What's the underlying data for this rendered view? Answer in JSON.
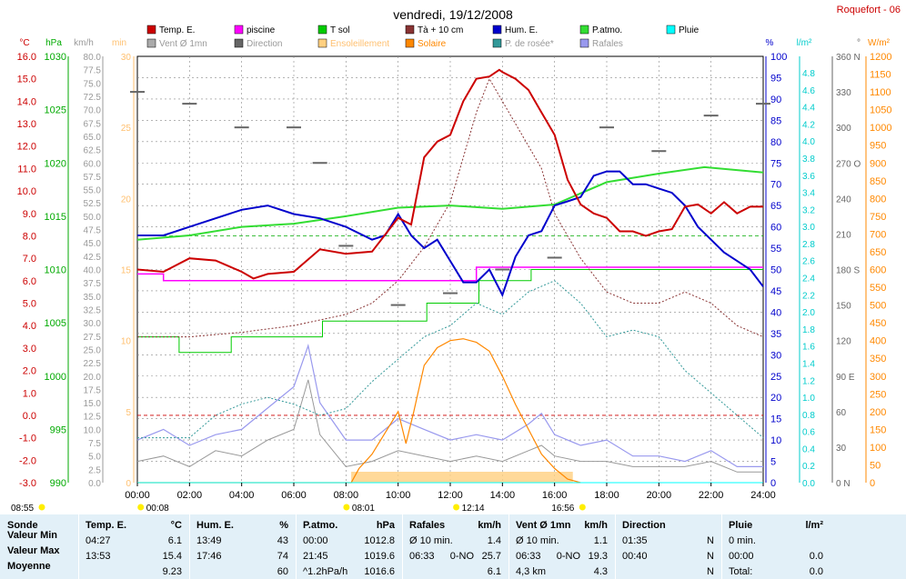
{
  "title": "vendredi, 19/12/2008",
  "station": "Roquefort - 06",
  "legend": [
    {
      "label": "Temp. E.",
      "color": "#cc0000"
    },
    {
      "label": "piscine",
      "color": "#ff00ff"
    },
    {
      "label": "T sol",
      "color": "#00cc00"
    },
    {
      "label": "Tà + 10 cm",
      "color": "#883333"
    },
    {
      "label": "Hum. E.",
      "color": "#0000cc"
    },
    {
      "label": "P.atmo.",
      "color": "#33dd33"
    },
    {
      "label": "Pluie",
      "color": "#00ffff"
    },
    {
      "label": "Vent Ø 1mn",
      "color": "#aaaaaa"
    },
    {
      "label": "Direction",
      "color": "#666666"
    },
    {
      "label": "Ensoleillement",
      "color": "#ffd080"
    },
    {
      "label": "Solaire",
      "color": "#ff8800"
    },
    {
      "label": "P. de rosée*",
      "color": "#339999"
    },
    {
      "label": "Rafales",
      "color": "#9999ee"
    }
  ],
  "axes_units": {
    "temp": "°C",
    "pressure": "hPa",
    "wind": "km/h",
    "min": "min",
    "hum": "%",
    "rain": "l/m²",
    "dir": "°",
    "solar": "W/m²"
  },
  "axis_ticks": {
    "temp": [
      "16.0",
      "15.0",
      "14.0",
      "13.0",
      "12.0",
      "11.0",
      "10.0",
      "9.0",
      "8.0",
      "7.0",
      "6.0",
      "5.0",
      "4.0",
      "3.0",
      "2.0",
      "1.0",
      "0.0",
      "-1.0",
      "-2.0",
      "-3.0"
    ],
    "pressure": [
      "1030",
      "1025",
      "1020",
      "1015",
      "1010",
      "1005",
      "1000",
      "995",
      "990"
    ],
    "wind": [
      "80.0",
      "77.5",
      "75.0",
      "72.5",
      "70.0",
      "67.5",
      "65.0",
      "62.5",
      "60.0",
      "57.5",
      "55.0",
      "52.5",
      "50.0",
      "47.5",
      "45.0",
      "42.5",
      "40.0",
      "37.5",
      "35.0",
      "32.5",
      "30.0",
      "27.5",
      "25.0",
      "22.5",
      "20.0",
      "17.5",
      "15.0",
      "12.5",
      "10.0",
      "7.5",
      "5.0",
      "2.5",
      "0.0"
    ],
    "minutes": [
      "30",
      "25",
      "20",
      "15",
      "10",
      "5",
      "0"
    ],
    "hum": [
      "100",
      "95",
      "90",
      "85",
      "80",
      "75",
      "70",
      "65",
      "60",
      "55",
      "50",
      "45",
      "40",
      "35",
      "30",
      "25",
      "20",
      "15",
      "10",
      "5",
      "0"
    ],
    "rain": [
      "4.8",
      "4.6",
      "4.4",
      "4.2",
      "4.0",
      "3.8",
      "3.6",
      "3.4",
      "3.2",
      "3.0",
      "2.8",
      "2.6",
      "2.4",
      "2.2",
      "2.0",
      "1.8",
      "1.6",
      "1.4",
      "1.2",
      "1.0",
      "0.8",
      "0.6",
      "0.4",
      "0.2",
      "0.0"
    ],
    "dir": [
      "360 N",
      "330",
      "300",
      "270 O",
      "240",
      "210",
      "180 S",
      "150",
      "120",
      "90 E",
      "60",
      "30",
      "0 N"
    ],
    "solar": [
      "1200",
      "1150",
      "1100",
      "1050",
      "1000",
      "950",
      "900",
      "850",
      "800",
      "750",
      "700",
      "650",
      "600",
      "550",
      "500",
      "450",
      "400",
      "350",
      "300",
      "250",
      "200",
      "150",
      "100",
      "50",
      "0"
    ]
  },
  "time_ticks": [
    "00:00",
    "02:00",
    "04:00",
    "06:00",
    "08:00",
    "10:00",
    "12:00",
    "14:00",
    "16:00",
    "18:00",
    "20:00",
    "22:00",
    "24:00"
  ],
  "markers": {
    "sunrise": "08:55",
    "t1": "00:08",
    "t2": "08:01",
    "t3": "12:14",
    "t4": "16:56"
  },
  "summary": {
    "sonde": {
      "h": "Sonde",
      "rows": [
        "Valeur Min",
        "Valeur Max",
        "Moyenne"
      ]
    },
    "temp": {
      "h": "Temp. E.",
      "u": "°C",
      "rows": [
        [
          "04:27",
          "6.1"
        ],
        [
          "13:53",
          "15.4"
        ],
        [
          "",
          "9.23"
        ]
      ]
    },
    "hum": {
      "h": "Hum. E.",
      "u": "%",
      "rows": [
        [
          "13:49",
          "43"
        ],
        [
          "17:46",
          "74"
        ],
        [
          "",
          "60"
        ]
      ]
    },
    "patmo": {
      "h": "P.atmo.",
      "u": "hPa",
      "rows": [
        [
          "00:00",
          "1012.8"
        ],
        [
          "21:45",
          "1019.6"
        ],
        [
          "^1.2hPa/h",
          "1016.6"
        ]
      ]
    },
    "rafales": {
      "h": "Rafales",
      "u": "km/h",
      "rows": [
        [
          "Ø 10 min.",
          "",
          "1.4"
        ],
        [
          "06:33",
          "0-NO",
          "25.7"
        ],
        [
          "",
          "",
          "6.1"
        ]
      ]
    },
    "vent": {
      "h": "Vent Ø 1mn",
      "u": "km/h",
      "rows": [
        [
          "Ø 10 min.",
          "",
          "1.1"
        ],
        [
          "06:33",
          "0-NO",
          "19.3"
        ],
        [
          "4,3 km",
          "",
          "4.3"
        ]
      ]
    },
    "direction": {
      "h": "Direction",
      "rows": [
        [
          "01:35",
          "N"
        ],
        [
          "00:40",
          "N"
        ],
        [
          "",
          "N"
        ]
      ]
    },
    "pluie": {
      "h": "Pluie",
      "u": "l/m²",
      "rows": [
        [
          "0 min.",
          ""
        ],
        [
          "00:00",
          "0.0"
        ],
        [
          "Total:",
          "0.0"
        ]
      ]
    }
  },
  "chart_data": {
    "type": "line",
    "x_unit": "hours",
    "x_range": [
      0,
      24
    ],
    "series": [
      {
        "name": "Temp. E.",
        "unit": "°C",
        "x": [
          0,
          1,
          2,
          3,
          4,
          4.45,
          5,
          6,
          7,
          8,
          9,
          10,
          10.5,
          11,
          11.5,
          12,
          12.5,
          13,
          13.5,
          13.88,
          14,
          14.5,
          15,
          15.5,
          16,
          16.5,
          17,
          17.5,
          18,
          18.5,
          19,
          19.5,
          20,
          20.5,
          21,
          21.5,
          22,
          22.5,
          23,
          23.5,
          24
        ],
        "y": [
          6.5,
          6.4,
          7.0,
          6.9,
          6.4,
          6.1,
          6.3,
          6.4,
          7.4,
          7.2,
          7.3,
          8.8,
          8.5,
          11.5,
          12.2,
          12.5,
          14.0,
          15.0,
          15.1,
          15.4,
          15.3,
          15.0,
          14.5,
          13.5,
          12.5,
          10.5,
          9.4,
          9.0,
          8.8,
          8.2,
          8.2,
          8.0,
          8.2,
          8.3,
          9.3,
          9.4,
          9.0,
          9.5,
          9.0,
          9.3,
          9.3
        ]
      },
      {
        "name": "piscine",
        "unit": "°C",
        "x": [
          0,
          1,
          2,
          4,
          6,
          8,
          10,
          11,
          12,
          13,
          14,
          16,
          18,
          20,
          22,
          23,
          24
        ],
        "y": [
          6.3,
          6.0,
          6.0,
          6.0,
          6.0,
          6.0,
          6.0,
          6.0,
          6.0,
          6.6,
          6.6,
          6.6,
          6.6,
          6.6,
          6.6,
          6.6,
          6.6
        ]
      },
      {
        "name": "T sol",
        "unit": "°C",
        "x": [
          0,
          1.5,
          1.6,
          3.5,
          3.6,
          4.8,
          7,
          7.1,
          11,
          11.1,
          13,
          13.1,
          15,
          15.1,
          24
        ],
        "y": [
          3.5,
          3.5,
          2.8,
          2.8,
          3.5,
          3.5,
          3.5,
          4.2,
          4.2,
          5.0,
          5.0,
          6.0,
          6.0,
          6.5,
          6.5
        ]
      },
      {
        "name": "Tà + 10 cm",
        "unit": "°C",
        "x": [
          0,
          2,
          4,
          6,
          8,
          9,
          10,
          11,
          12,
          13,
          13.5,
          14,
          15,
          15.5,
          16,
          17,
          18,
          19,
          20,
          21,
          22,
          23,
          24
        ],
        "y": [
          3.5,
          3.5,
          3.7,
          4.0,
          4.5,
          5.0,
          6.0,
          7.5,
          9.5,
          13.5,
          15.0,
          14.0,
          12.0,
          11.0,
          9.0,
          7.0,
          5.5,
          5.0,
          5.0,
          5.5,
          5.0,
          4.0,
          3.5
        ]
      },
      {
        "name": "Hum. E.",
        "unit": "%",
        "x": [
          0,
          1,
          2,
          3,
          4,
          5,
          6,
          7,
          8,
          9,
          9.5,
          10,
          10.5,
          11,
          11.5,
          12,
          12.5,
          13,
          13.5,
          14,
          14.5,
          15,
          15.5,
          16,
          16.5,
          17,
          17.5,
          18,
          18.5,
          19,
          19.5,
          20,
          20.5,
          21,
          21.5,
          22,
          22.5,
          23,
          23.5,
          24
        ],
        "y": [
          58,
          58,
          60,
          62,
          64,
          65,
          63,
          62,
          60,
          57,
          58,
          63,
          58,
          55,
          57,
          52,
          47,
          47,
          50,
          44,
          53,
          58,
          59,
          65,
          66,
          67,
          72,
          73,
          73,
          70,
          70,
          69,
          68,
          65,
          60,
          57,
          54,
          52,
          50,
          46
        ]
      },
      {
        "name": "P.atmo.",
        "unit": "hPa",
        "x": [
          0,
          2,
          4,
          6,
          8,
          10,
          12,
          14,
          16,
          18,
          20,
          21.75,
          24
        ],
        "y": [
          1012.8,
          1013.2,
          1014.0,
          1014.3,
          1015.0,
          1015.8,
          1016.0,
          1015.7,
          1016.1,
          1018.2,
          1019.0,
          1019.6,
          1019.1
        ]
      },
      {
        "name": "Vent Ø 1mn",
        "unit": "km/h",
        "x": [
          0,
          1,
          2,
          3,
          4,
          5,
          6,
          6.55,
          7,
          8,
          9,
          10,
          11,
          12,
          13,
          14,
          15,
          15.5,
          16,
          17,
          18,
          19,
          20,
          21,
          22,
          23,
          24
        ],
        "y": [
          4,
          5,
          3,
          6,
          5,
          8,
          10,
          19.3,
          9,
          3,
          4,
          6,
          5,
          4,
          5,
          4,
          6,
          7,
          5,
          4,
          4,
          3,
          3,
          3,
          4,
          2,
          2
        ]
      },
      {
        "name": "Direction",
        "unit": "°",
        "x": [
          0,
          2,
          4,
          6,
          7,
          8,
          10,
          12,
          14,
          16,
          18,
          20,
          22,
          24
        ],
        "y": [
          330,
          320,
          300,
          300,
          270,
          200,
          150,
          160,
          180,
          190,
          300,
          280,
          310,
          320
        ]
      },
      {
        "name": "Solaire",
        "unit": "W/m²",
        "x": [
          0,
          8.2,
          8.5,
          9,
          9.5,
          10,
          10.3,
          10.6,
          11,
          11.5,
          12,
          12.5,
          13,
          13.5,
          14,
          14.5,
          15,
          15.5,
          16,
          16.5,
          17
        ],
        "y": [
          0,
          0,
          40,
          80,
          140,
          200,
          110,
          200,
          330,
          380,
          400,
          405,
          395,
          370,
          300,
          220,
          150,
          80,
          40,
          10,
          0
        ]
      },
      {
        "name": "P. de rosée*",
        "unit": "°C",
        "x": [
          0,
          2,
          3,
          4,
          5,
          6,
          7,
          8,
          9,
          10,
          11,
          12,
          13,
          14,
          15,
          16,
          17,
          18,
          19,
          20,
          21,
          22,
          23,
          24
        ],
        "y": [
          -1.0,
          -1.0,
          0.0,
          0.5,
          0.8,
          0.5,
          0.0,
          0.3,
          1.5,
          2.5,
          3.5,
          4.0,
          5.0,
          4.5,
          5.5,
          6.0,
          5.0,
          3.5,
          3.8,
          3.5,
          2.0,
          1.0,
          0.0,
          -1.0
        ]
      },
      {
        "name": "Rafales",
        "unit": "km/h",
        "x": [
          0,
          1,
          2,
          3,
          4,
          5,
          6,
          6.55,
          7,
          8,
          9,
          10,
          11,
          12,
          13,
          14,
          15,
          15.5,
          16,
          17,
          18,
          19,
          20,
          21,
          22,
          23,
          24
        ],
        "y": [
          8,
          10,
          7,
          9,
          10,
          14,
          18,
          25.7,
          15,
          8,
          8,
          12,
          10,
          8,
          9,
          8,
          11,
          13,
          9,
          7,
          8,
          5,
          5,
          4,
          6,
          3,
          3
        ]
      },
      {
        "name": "Pluie",
        "unit": "l/m²",
        "x": [
          0,
          24
        ],
        "y": [
          0,
          0
        ]
      }
    ]
  }
}
